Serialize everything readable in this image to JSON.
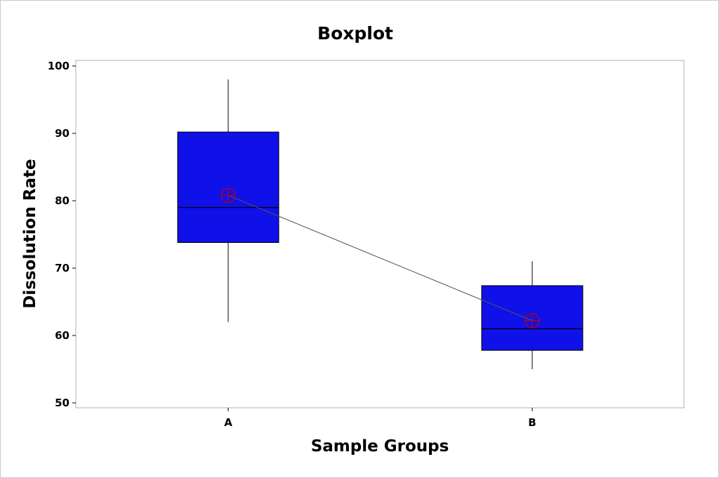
{
  "chart_data": {
    "type": "boxplot",
    "title": "Boxplot",
    "xlabel": "Sample Groups",
    "ylabel": "Dissolution Rate",
    "ylim": [
      50,
      100
    ],
    "yticks": [
      50,
      60,
      70,
      80,
      90,
      100
    ],
    "categories": [
      "A",
      "B"
    ],
    "boxes": [
      {
        "category": "A",
        "min": 62,
        "q1": 73.8,
        "median": 79,
        "q3": 90.2,
        "max": 98,
        "mean": 80.8
      },
      {
        "category": "B",
        "min": 55,
        "q1": 57.8,
        "median": 61,
        "q3": 67.4,
        "max": 71,
        "mean": 62.2
      }
    ],
    "mean_connect_line": true,
    "grid": false,
    "colors": {
      "box_fill": "#1010e8",
      "mean_marker": "#c00000",
      "line": "#000000",
      "mean_line": "#555555"
    }
  }
}
